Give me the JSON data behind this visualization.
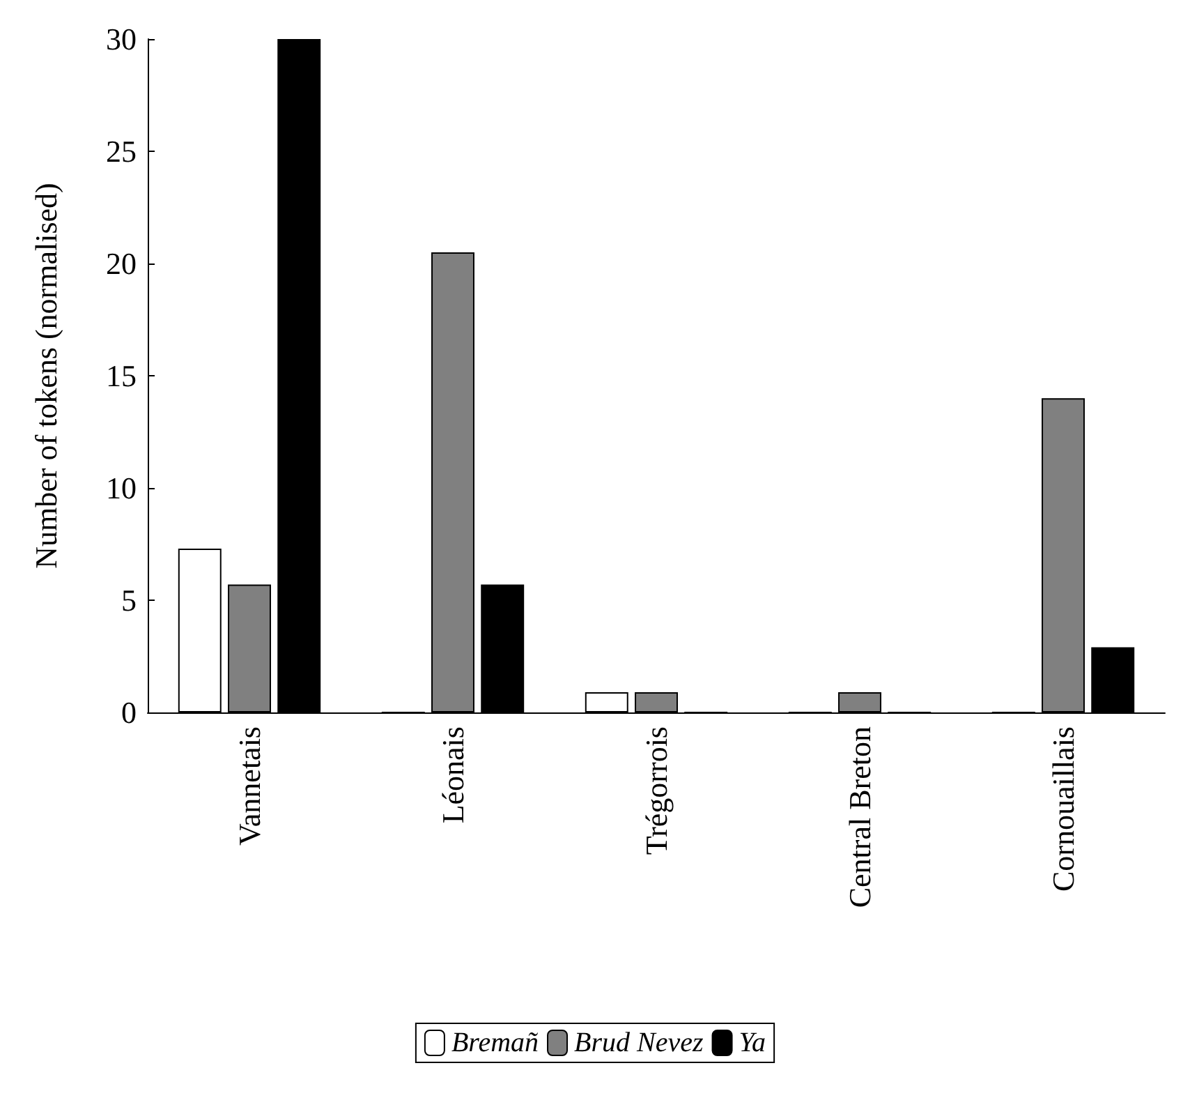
{
  "chart_data": {
    "type": "bar",
    "ylabel": "Number of tokens (normalised)",
    "categories": [
      "Vannetais",
      "Léonais",
      "Trégorrois",
      "Central Breton",
      "Cornouaillais"
    ],
    "series": [
      {
        "name": "Bremañ",
        "color": "#ffffff",
        "values": [
          7.3,
          0,
          0.9,
          0,
          0
        ]
      },
      {
        "name": "Brud Nevez",
        "color": "#808080",
        "values": [
          5.7,
          20.5,
          0.9,
          0.9,
          14
        ]
      },
      {
        "name": "Ya",
        "color": "#000000",
        "values": [
          30,
          5.7,
          0,
          0,
          2.9
        ]
      }
    ],
    "ylim": [
      0,
      30
    ],
    "yticks": [
      0,
      5,
      10,
      15,
      20,
      25,
      30
    ],
    "grid": false,
    "legend": "bottom"
  }
}
